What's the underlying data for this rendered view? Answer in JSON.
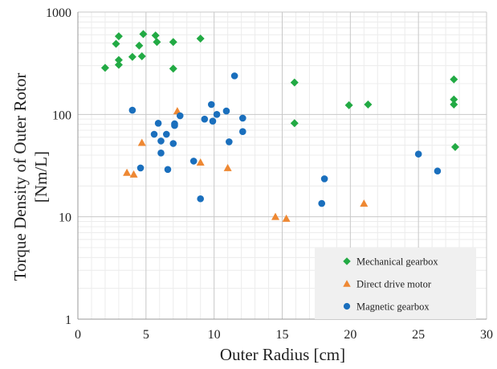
{
  "chart_data": {
    "type": "scatter",
    "title": "",
    "xlabel": "Outer Radius [cm]",
    "ylabel_lines": [
      "Torque Density of Outer Rotor",
      "[Nm/L]"
    ],
    "xlim": [
      0,
      30
    ],
    "ylim": [
      1,
      1000
    ],
    "y_scale": "log",
    "x_ticks": [
      "0",
      "5",
      "10",
      "15",
      "20",
      "25",
      "30"
    ],
    "y_ticks": [
      "1",
      "10",
      "100",
      "1000"
    ],
    "grid": true,
    "legend_position": "bottom-right",
    "series": [
      {
        "name": "Mechanical gearbox",
        "marker": "diamond",
        "color": "#22aa44",
        "points": [
          [
            2.0,
            285
          ],
          [
            2.8,
            490
          ],
          [
            3.0,
            580
          ],
          [
            3.0,
            340
          ],
          [
            3.0,
            305
          ],
          [
            4.0,
            365
          ],
          [
            4.5,
            470
          ],
          [
            4.7,
            370
          ],
          [
            4.8,
            610
          ],
          [
            5.7,
            590
          ],
          [
            5.8,
            510
          ],
          [
            7.0,
            510
          ],
          [
            7.0,
            280
          ],
          [
            9.0,
            550
          ],
          [
            15.9,
            205
          ],
          [
            15.9,
            82
          ],
          [
            19.9,
            123
          ],
          [
            21.3,
            125
          ],
          [
            27.6,
            220
          ],
          [
            27.6,
            140
          ],
          [
            27.6,
            125
          ],
          [
            27.7,
            48
          ]
        ]
      },
      {
        "name": "Direct drive motor",
        "marker": "triangle",
        "color": "#ee8833",
        "points": [
          [
            3.6,
            27
          ],
          [
            4.1,
            26
          ],
          [
            4.7,
            53
          ],
          [
            7.3,
            108
          ],
          [
            9.0,
            34
          ],
          [
            11.0,
            30
          ],
          [
            14.5,
            10
          ],
          [
            15.3,
            9.6
          ],
          [
            21.0,
            13.5
          ]
        ]
      },
      {
        "name": "Magnetic gearbox",
        "marker": "circle",
        "color": "#1a6fbd",
        "points": [
          [
            4.0,
            110
          ],
          [
            4.6,
            30
          ],
          [
            5.6,
            64
          ],
          [
            5.9,
            82
          ],
          [
            6.1,
            55
          ],
          [
            6.1,
            42
          ],
          [
            6.5,
            64
          ],
          [
            6.6,
            29
          ],
          [
            7.0,
            52
          ],
          [
            7.1,
            78
          ],
          [
            7.1,
            81
          ],
          [
            7.5,
            97
          ],
          [
            8.5,
            35
          ],
          [
            9.0,
            15
          ],
          [
            9.3,
            90
          ],
          [
            9.8,
            125
          ],
          [
            9.9,
            86
          ],
          [
            10.2,
            100
          ],
          [
            10.9,
            108
          ],
          [
            11.1,
            54
          ],
          [
            11.5,
            238
          ],
          [
            12.1,
            92
          ],
          [
            12.1,
            68
          ],
          [
            17.9,
            13.5
          ],
          [
            18.1,
            23.5
          ],
          [
            25.0,
            41
          ],
          [
            26.4,
            28
          ]
        ]
      }
    ]
  }
}
